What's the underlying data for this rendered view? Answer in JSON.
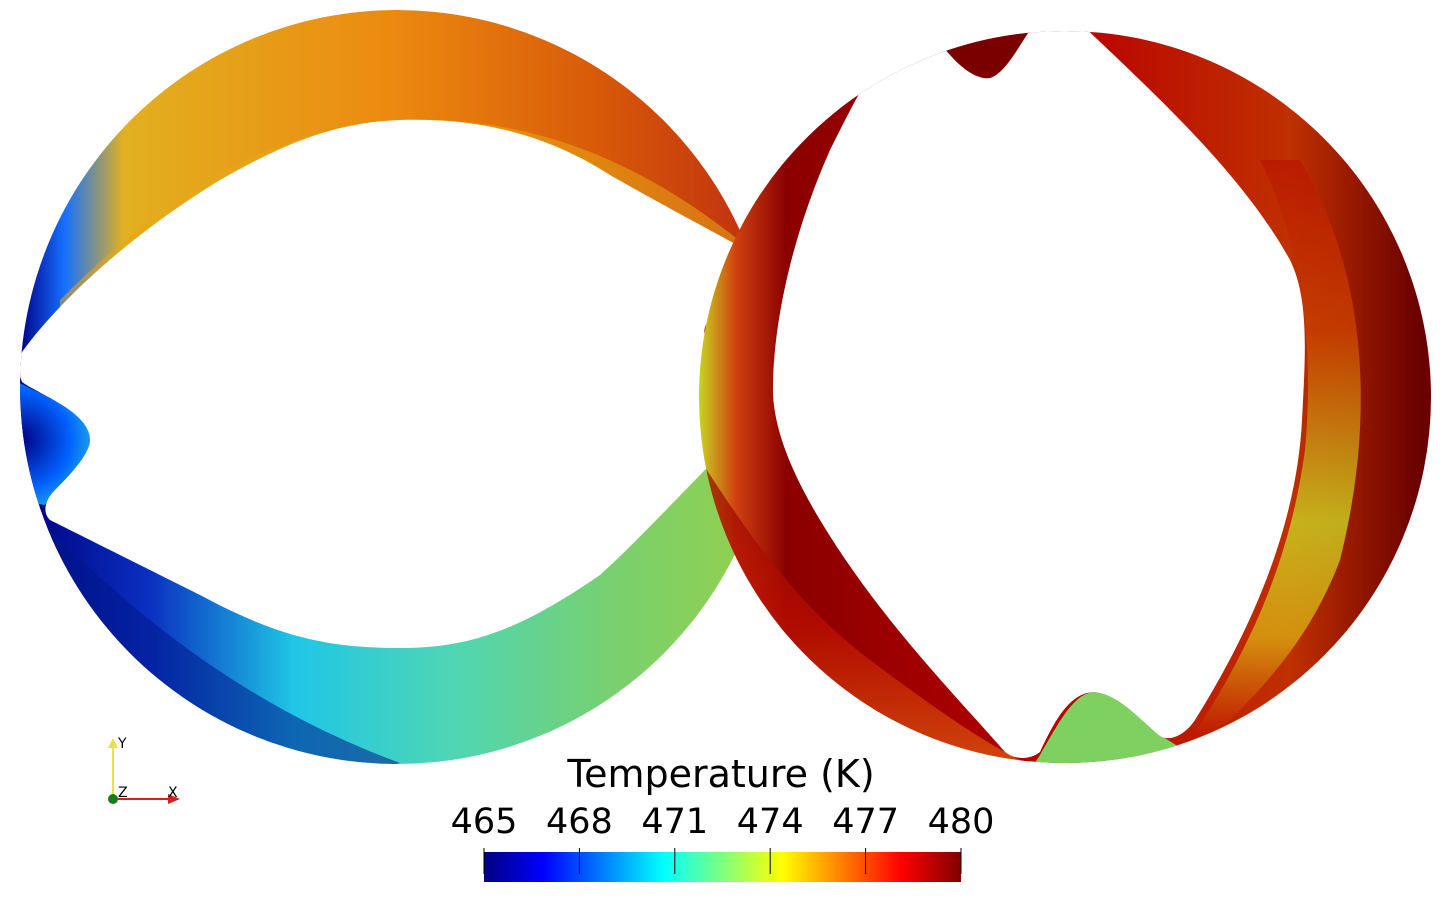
{
  "legend": {
    "title": "Temperature (K)",
    "ticks": [
      "465",
      "468",
      "471",
      "474",
      "477",
      "480"
    ],
    "colormap": [
      "#00007f",
      "#0000ff",
      "#007fff",
      "#00ffff",
      "#7fff7f",
      "#ffff00",
      "#ff7f00",
      "#ff0000",
      "#7f0000"
    ]
  },
  "axes": {
    "x": "X",
    "y": "Y",
    "z": "Z"
  },
  "colors": {
    "x_axis": "#d62020",
    "y_axis": "#e8e24a",
    "z_axis": "#1a7a1a"
  }
}
